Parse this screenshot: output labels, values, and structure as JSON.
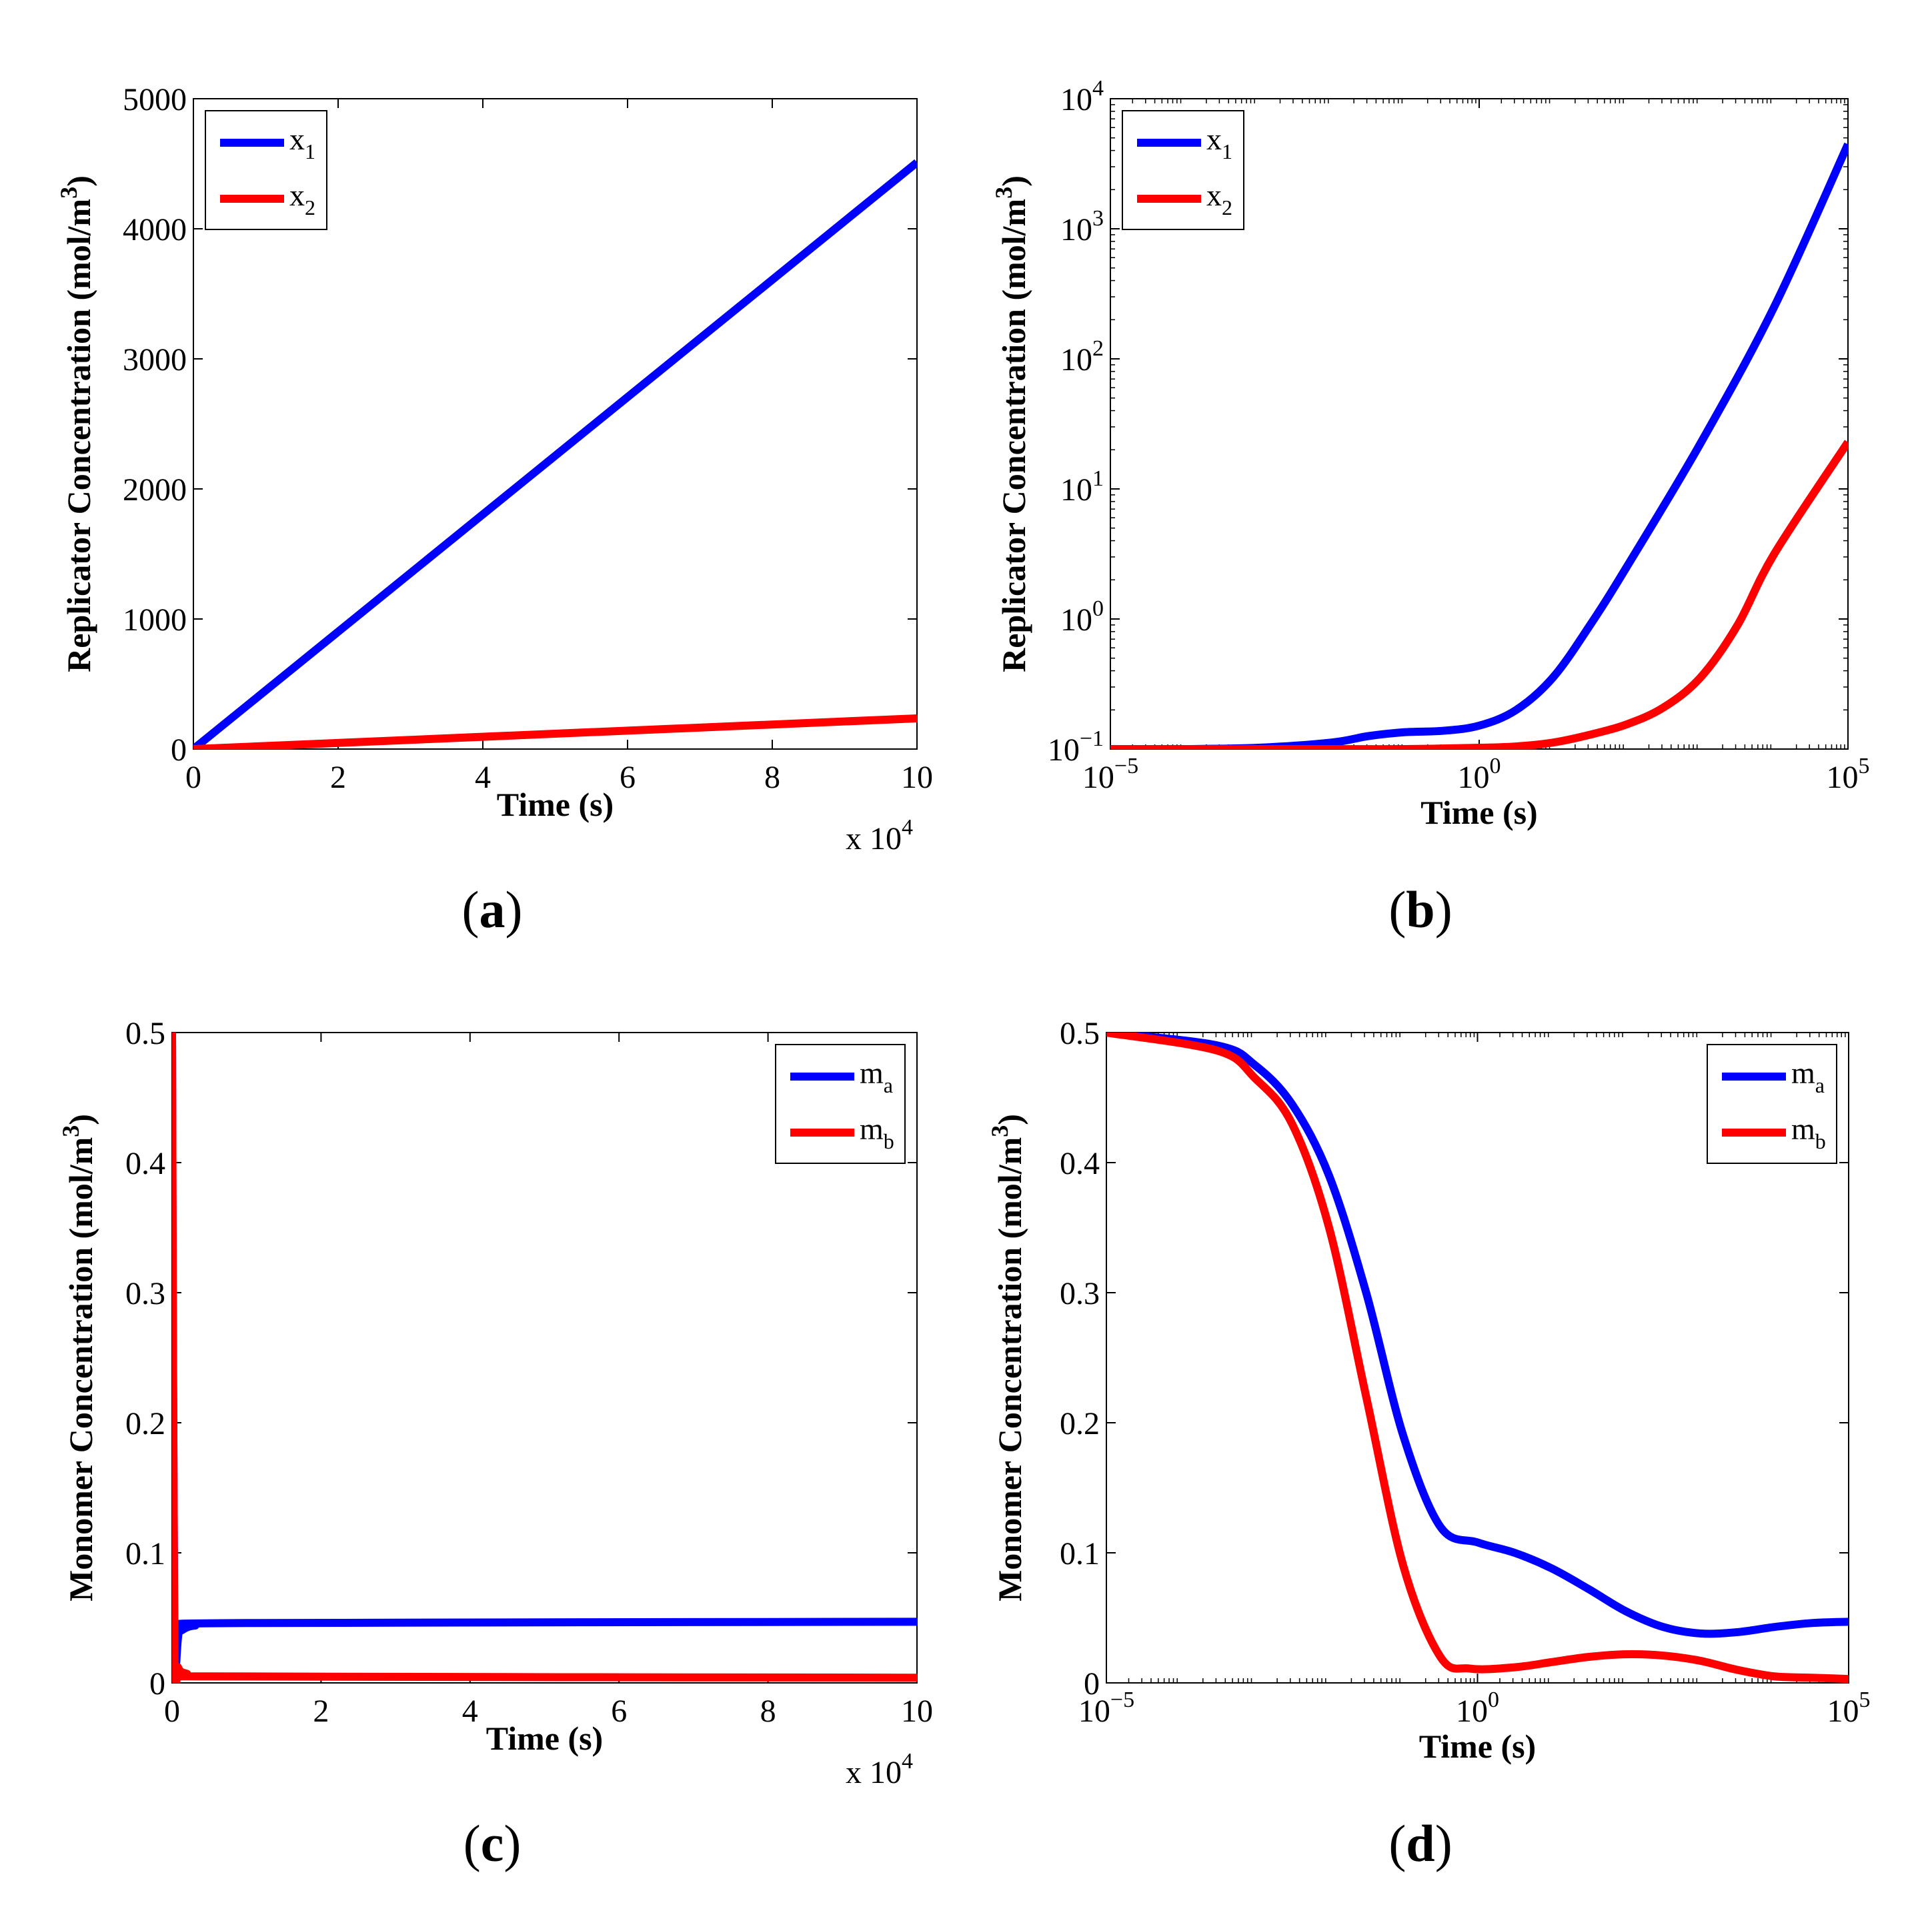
{
  "figure": {
    "panel_labels": [
      "a",
      "b",
      "c",
      "d"
    ]
  },
  "chart_data": [
    {
      "id": "a",
      "type": "line",
      "xscale": "linear",
      "yscale": "linear",
      "xlabel": "Time (s)",
      "ylabel": "Replicator Concentration (mol/m3)",
      "ylabel_base": "Replicator Concentration (mol/m",
      "ylabel_sup": "3",
      "ylabel_end": ")",
      "x_multiplier": "x 10",
      "x_multiplier_exp": "4",
      "xlim": [
        0,
        10
      ],
      "ylim": [
        0,
        5000
      ],
      "xticks": [
        "0",
        "2",
        "4",
        "6",
        "8",
        "10"
      ],
      "xtick_values": [
        0,
        2,
        4,
        6,
        8,
        10
      ],
      "yticks": [
        "0",
        "1000",
        "2000",
        "3000",
        "4000",
        "5000"
      ],
      "ytick_values": [
        0,
        1000,
        2000,
        3000,
        4000,
        5000
      ],
      "legend_position": "top-left",
      "series": [
        {
          "name": "x1",
          "label": "x",
          "sub": "1",
          "color": "#0000ff",
          "x": [
            0,
            10
          ],
          "y": [
            0,
            4510
          ]
        },
        {
          "name": "x2",
          "label": "x",
          "sub": "2",
          "color": "#ff0000",
          "x": [
            0,
            10
          ],
          "y": [
            0,
            236
          ]
        }
      ]
    },
    {
      "id": "b",
      "type": "line",
      "xscale": "log",
      "yscale": "log",
      "xlabel": "Time (s)",
      "ylabel": "Replicator Concentration (mol/m3)",
      "ylabel_base": "Replicator Concentration (mol/m",
      "ylabel_sup": "3",
      "ylabel_end": ")",
      "xlim": [
        -5,
        5
      ],
      "ylim": [
        -1,
        4
      ],
      "xticks_base": "10",
      "xticks_exp": [
        "-5",
        "0",
        "5"
      ],
      "xtick_values": [
        -5,
        0,
        5
      ],
      "yticks_base": "10",
      "yticks_exp": [
        "-1",
        "0",
        "1",
        "2",
        "3",
        "4"
      ],
      "ytick_values": [
        -1,
        0,
        1,
        2,
        3,
        4
      ],
      "legend_position": "top-left",
      "series": [
        {
          "name": "x1",
          "label": "x",
          "sub": "1",
          "color": "#0000ff",
          "x": [
            -5,
            -4,
            -3,
            -2,
            -1.5,
            -1,
            -0.5,
            0,
            0.5,
            1,
            1.5,
            2,
            3,
            4,
            5
          ],
          "y": [
            -1,
            -1,
            -0.99,
            -0.95,
            -0.9,
            -0.87,
            -0.86,
            -0.82,
            -0.7,
            -0.45,
            -0.05,
            0.4,
            1.35,
            2.4,
            3.65
          ]
        },
        {
          "name": "x2",
          "label": "x",
          "sub": "2",
          "color": "#ff0000",
          "x": [
            -5,
            -3,
            -2,
            -1,
            0,
            0.5,
            1,
            1.5,
            2,
            2.5,
            3,
            3.5,
            4,
            5
          ],
          "y": [
            -1,
            -1,
            -1,
            -1,
            -0.99,
            -0.98,
            -0.95,
            -0.89,
            -0.81,
            -0.68,
            -0.45,
            -0.05,
            0.5,
            1.36
          ]
        }
      ]
    },
    {
      "id": "c",
      "type": "line",
      "xscale": "linear",
      "yscale": "linear",
      "xlabel": "Time (s)",
      "ylabel": "Monomer Concentration (mol/m3)",
      "ylabel_base": "Monomer Concentration (mol/m",
      "ylabel_sup": "3",
      "ylabel_end": ")",
      "x_multiplier": "x 10",
      "x_multiplier_exp": "4",
      "xlim": [
        0,
        10
      ],
      "ylim": [
        0,
        0.5
      ],
      "xticks": [
        "0",
        "2",
        "4",
        "6",
        "8",
        "10"
      ],
      "xtick_values": [
        0,
        2,
        4,
        6,
        8,
        10
      ],
      "yticks": [
        "0",
        "0.1",
        "0.2",
        "0.3",
        "0.4",
        "0.5"
      ],
      "ytick_values": [
        0,
        0.1,
        0.2,
        0.3,
        0.4,
        0.5
      ],
      "legend_position": "top-right",
      "series": [
        {
          "name": "ma",
          "label": "m",
          "sub": "a",
          "color": "#0000ff",
          "x": [
            0,
            0.03,
            0.1,
            0.3,
            1,
            10
          ],
          "y": [
            0.5,
            0.045,
            0.04,
            0.044,
            0.046,
            0.047
          ]
        },
        {
          "name": "mb",
          "label": "m",
          "sub": "b",
          "color": "#ff0000",
          "x": [
            0,
            0.03,
            0.08,
            0.2,
            0.5,
            10
          ],
          "y": [
            0.5,
            0.03,
            0.012,
            0.007,
            0.005,
            0.004
          ]
        }
      ]
    },
    {
      "id": "d",
      "type": "line",
      "xscale": "log",
      "yscale": "linear",
      "xlabel": "Time (s)",
      "ylabel": "Monomer Concentration (mol/m3)",
      "ylabel_base": "Monomer Concentration (mol/m",
      "ylabel_sup": "3",
      "ylabel_end": ")",
      "xlim": [
        -5,
        5
      ],
      "ylim": [
        0,
        0.5
      ],
      "xticks_base": "10",
      "xticks_exp": [
        "-5",
        "0",
        "5"
      ],
      "xtick_values": [
        -5,
        0,
        5
      ],
      "yticks": [
        "0",
        "0.1",
        "0.2",
        "0.3",
        "0.4",
        "0.5"
      ],
      "ytick_values": [
        0,
        0.1,
        0.2,
        0.3,
        0.4,
        0.5
      ],
      "legend_position": "top-right",
      "series": [
        {
          "name": "ma",
          "label": "m",
          "sub": "a",
          "color": "#0000ff",
          "x": [
            -5,
            -3.5,
            -3,
            -2.5,
            -2,
            -1.5,
            -1,
            -0.5,
            0,
            0.5,
            1,
            1.5,
            2,
            2.5,
            3,
            3.5,
            4,
            4.5,
            5
          ],
          "y": [
            0.5,
            0.49,
            0.475,
            0.445,
            0.39,
            0.3,
            0.19,
            0.12,
            0.108,
            0.1,
            0.088,
            0.072,
            0.055,
            0.043,
            0.038,
            0.039,
            0.043,
            0.046,
            0.047
          ]
        },
        {
          "name": "mb",
          "label": "m",
          "sub": "b",
          "color": "#ff0000",
          "x": [
            -5,
            -3.5,
            -3,
            -2.5,
            -2,
            -1.5,
            -1,
            -0.5,
            -0.1,
            0.5,
            1,
            1.5,
            2,
            2.5,
            3,
            3.5,
            4,
            4.5,
            5
          ],
          "y": [
            0.5,
            0.486,
            0.465,
            0.43,
            0.35,
            0.22,
            0.09,
            0.02,
            0.011,
            0.012,
            0.016,
            0.02,
            0.022,
            0.021,
            0.017,
            0.01,
            0.005,
            0.004,
            0.003
          ]
        }
      ]
    }
  ]
}
